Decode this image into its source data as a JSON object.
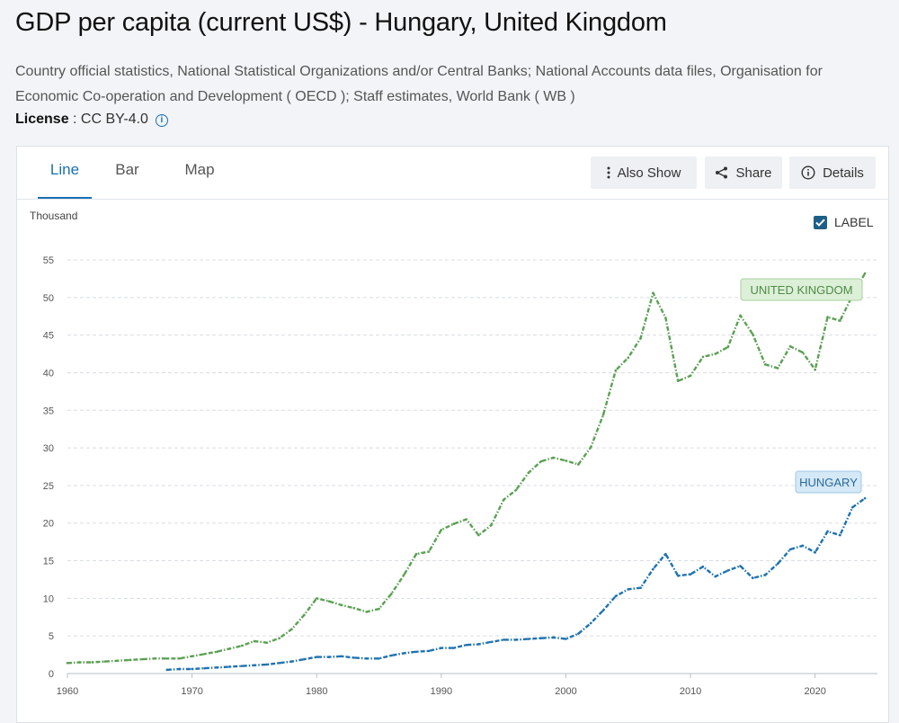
{
  "page": {
    "title": "GDP per capita (current US$) - Hungary, United Kingdom",
    "sources": "Country official statistics, National Statistical Organizations and/or Central Banks; National Accounts data files, Organisation for Economic Co-operation and Development ( OECD ); Staff estimates, World Bank ( WB )",
    "license_label": "License",
    "license_value": " : CC BY-4.0"
  },
  "tabs": [
    {
      "label": "Line",
      "active": true
    },
    {
      "label": "Bar",
      "active": false
    },
    {
      "label": "Map",
      "active": false
    }
  ],
  "toolbar": {
    "also_show": "Also Show",
    "share": "Share",
    "details": "Details"
  },
  "label_toggle": {
    "label": "LABEL",
    "checked": true
  },
  "colors": {
    "uk": "#5ba053",
    "hungary": "#1f72b0",
    "accent": "#1a6fb5"
  },
  "chart_data": {
    "type": "line",
    "title": "GDP per capita (current US$) - Hungary, United Kingdom",
    "ylabel": "Thousand",
    "xlabel": "",
    "xlim": [
      1960,
      2025
    ],
    "ylim": [
      0,
      55
    ],
    "x_ticks": [
      1960,
      1970,
      1980,
      1990,
      2000,
      2010,
      2020
    ],
    "y_ticks": [
      0,
      5,
      10,
      15,
      20,
      25,
      30,
      35,
      40,
      45,
      50,
      55
    ],
    "grid": true,
    "series": [
      {
        "name": "UNITED KINGDOM",
        "years": [
          1960,
          1961,
          1962,
          1963,
          1964,
          1965,
          1966,
          1967,
          1968,
          1969,
          1970,
          1971,
          1972,
          1973,
          1974,
          1975,
          1976,
          1977,
          1978,
          1979,
          1980,
          1981,
          1982,
          1983,
          1984,
          1985,
          1986,
          1987,
          1988,
          1989,
          1990,
          1991,
          1992,
          1993,
          1994,
          1995,
          1996,
          1997,
          1998,
          1999,
          2000,
          2001,
          2002,
          2003,
          2004,
          2005,
          2006,
          2007,
          2008,
          2009,
          2010,
          2011,
          2012,
          2013,
          2014,
          2015,
          2016,
          2017,
          2018,
          2019,
          2020,
          2021,
          2022,
          2023,
          2024
        ],
        "values": [
          1.4,
          1.5,
          1.5,
          1.6,
          1.7,
          1.8,
          1.9,
          2.0,
          2.0,
          2.0,
          2.3,
          2.6,
          2.9,
          3.3,
          3.7,
          4.3,
          4.1,
          4.7,
          5.9,
          7.8,
          10.0,
          9.6,
          9.1,
          8.7,
          8.2,
          8.6,
          10.6,
          13.1,
          15.9,
          16.2,
          19.1,
          19.9,
          20.5,
          18.4,
          19.7,
          23.1,
          24.4,
          26.7,
          28.2,
          28.7,
          28.3,
          27.8,
          30.1,
          34.4,
          40.3,
          42.0,
          44.6,
          50.6,
          47.3,
          38.9,
          39.6,
          42.1,
          42.5,
          43.4,
          47.6,
          45.1,
          41.1,
          40.6,
          43.5,
          42.7,
          40.4,
          47.4,
          46.9,
          50.3,
          53.2
        ]
      },
      {
        "name": "HUNGARY",
        "years": [
          1968,
          1969,
          1970,
          1971,
          1972,
          1973,
          1974,
          1975,
          1976,
          1977,
          1978,
          1979,
          1980,
          1981,
          1982,
          1983,
          1984,
          1985,
          1986,
          1987,
          1988,
          1989,
          1990,
          1991,
          1992,
          1993,
          1994,
          1995,
          1996,
          1997,
          1998,
          1999,
          2000,
          2001,
          2002,
          2003,
          2004,
          2005,
          2006,
          2007,
          2008,
          2009,
          2010,
          2011,
          2012,
          2013,
          2014,
          2015,
          2016,
          2017,
          2018,
          2019,
          2020,
          2021,
          2022,
          2023,
          2024
        ],
        "values": [
          0.5,
          0.6,
          0.6,
          0.7,
          0.8,
          0.9,
          1.0,
          1.1,
          1.2,
          1.4,
          1.6,
          1.9,
          2.2,
          2.2,
          2.3,
          2.1,
          2.0,
          2.0,
          2.4,
          2.7,
          2.9,
          3.0,
          3.4,
          3.4,
          3.8,
          3.9,
          4.2,
          4.5,
          4.5,
          4.6,
          4.7,
          4.8,
          4.6,
          5.3,
          6.7,
          8.4,
          10.3,
          11.2,
          11.4,
          13.9,
          15.9,
          13.0,
          13.2,
          14.2,
          12.9,
          13.7,
          14.3,
          12.7,
          13.1,
          14.6,
          16.5,
          17.0,
          16.1,
          18.9,
          18.4,
          22.1,
          23.3
        ]
      }
    ]
  }
}
